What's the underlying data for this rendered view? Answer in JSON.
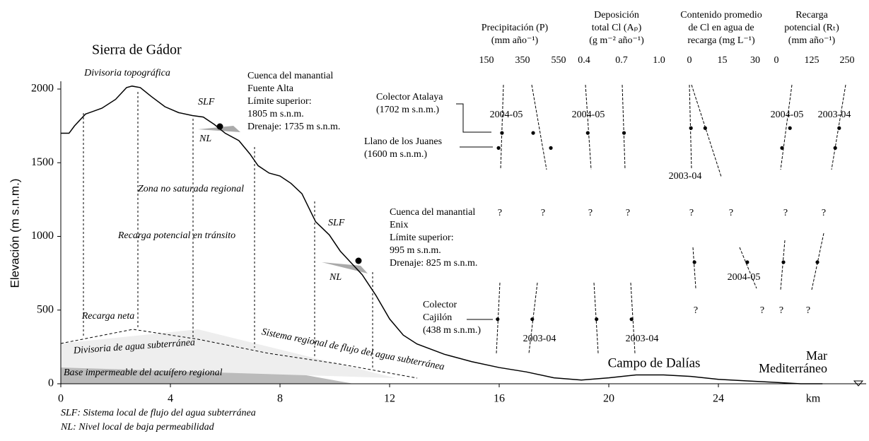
{
  "chart_data": {
    "type": "line",
    "title": "Sierra de Gádor",
    "y_label": "Elevación (m s.n.m.)",
    "x_unit": "km",
    "xlim": [
      0,
      28
    ],
    "ylim": [
      0,
      2050
    ],
    "xticks": [
      0,
      4,
      8,
      12,
      16,
      20,
      24
    ],
    "yticks": [
      0,
      500,
      1000,
      1500,
      2000
    ],
    "x": [
      0,
      0.3,
      0.5,
      0.9,
      1.5,
      2.0,
      2.4,
      2.6,
      2.9,
      3.3,
      3.8,
      4.3,
      4.8,
      5.2,
      5.6,
      6.0,
      6.5,
      6.9,
      7.2,
      7.6,
      8.0,
      8.4,
      8.8,
      9.3,
      9.8,
      10.2,
      10.5,
      11.0,
      11.5,
      12.0,
      12.5,
      13.0,
      14,
      15,
      16,
      17,
      18,
      19,
      20,
      21,
      22,
      23,
      24,
      25,
      26,
      27,
      27.8
    ],
    "series": [
      {
        "color": "#000000",
        "values": [
          1700,
          1700,
          1750,
          1830,
          1870,
          1930,
          2010,
          2020,
          2010,
          1950,
          1880,
          1840,
          1820,
          1810,
          1760,
          1700,
          1650,
          1560,
          1480,
          1430,
          1410,
          1360,
          1290,
          1100,
          1010,
          900,
          840,
          740,
          600,
          440,
          330,
          270,
          200,
          150,
          110,
          80,
          40,
          25,
          40,
          60,
          60,
          50,
          30,
          20,
          10,
          0,
          0
        ]
      }
    ],
    "labels": {
      "divisoria_topo": "Divisoria topográfica",
      "slf1": "SLF",
      "nl1": "NL",
      "slf2": "SLF",
      "nl2": "NL",
      "fuente_alta": [
        "Cuenca del manantial",
        "Fuente Alta",
        "Límite superior:",
        "1805 m s.n.m.",
        "Drenaje: 1735 m s.n.m."
      ],
      "atalaya": [
        "Colector Atalaya",
        "(1702 m s.n.m.)"
      ],
      "llano": [
        "Llano de los Juanes",
        "(1600 m s.n.m.)"
      ],
      "zona": "Zona no saturada regional",
      "transito": "Recarga potencial en tránsito",
      "neta": "Recarga neta",
      "divisoria_sub": "Divisoria de agua subterránea",
      "sistema": "Sistema regional de flujo del agua subterránea",
      "base": "Base impermeable del acuífero regional",
      "enix": [
        "Cuenca del manantial",
        "Enix",
        "Límite superior:",
        "995 m s.n.m.",
        "Drenaje: 825 m s.n.m."
      ],
      "cajilon": [
        "Colector",
        "Cajilón",
        "(438 m s.n.m.)"
      ],
      "campo": "Campo de Dalías",
      "mar": [
        "Mar",
        "Mediterráneo"
      ],
      "foot1": "SLF: Sistema local de flujo del agua subterránea",
      "foot2": "NL: Nivel local de baja permeabilidad"
    },
    "panels": [
      {
        "title": [
          "Precipitación (P)",
          "(mm año⁻¹)"
        ],
        "xlim": [
          150,
          550
        ],
        "xticks": [
          150,
          350,
          550
        ],
        "values": [
          236,
          409,
          217,
          507,
          212,
          404
        ],
        "elevations": [
          1702,
          1702,
          1600,
          1600,
          438,
          438
        ]
      },
      {
        "title": [
          "Deposición",
          "total Cl (Aₚ)",
          "(g m⁻² año⁻¹)"
        ],
        "xlim": [
          0.4,
          1.0
        ],
        "xticks": [
          0.4,
          0.7,
          {
            "value": 1,
            "label": "1.0"
          }
        ],
        "values": [
          0.43,
          0.72,
          0.5,
          0.78
        ],
        "elevations": [
          1702,
          1702,
          438,
          438
        ]
      },
      {
        "title": [
          "Contenido promedio",
          "de Cl en agua de",
          "recarga (mg L⁻¹)"
        ],
        "xlim": [
          0,
          30
        ],
        "xticks": [
          0,
          15,
          30
        ],
        "values": [
          0.7,
          7.2,
          2.3,
          26.4
        ],
        "elevations": [
          1735,
          1735,
          825,
          825
        ]
      },
      {
        "title": [
          "Recarga",
          "potencial (Rₜ)",
          "(mm año⁻¹)"
        ],
        "xlim": [
          0,
          250
        ],
        "xticks": [
          0,
          125,
          250
        ],
        "values": [
          48,
          222,
          20,
          208,
          25,
          145
        ],
        "elevations": [
          1735,
          1735,
          1600,
          1600,
          825,
          825
        ]
      }
    ],
    "years": [
      "2004-05",
      "2004-05",
      "2004-05",
      "2003-04",
      "2003-04",
      "2004-05",
      "2003-04",
      "2003-04"
    ],
    "question_marks": [
      "?",
      "?",
      "?",
      "?",
      "?",
      "?",
      "?",
      "?",
      "?",
      "?",
      "?",
      "?"
    ]
  }
}
